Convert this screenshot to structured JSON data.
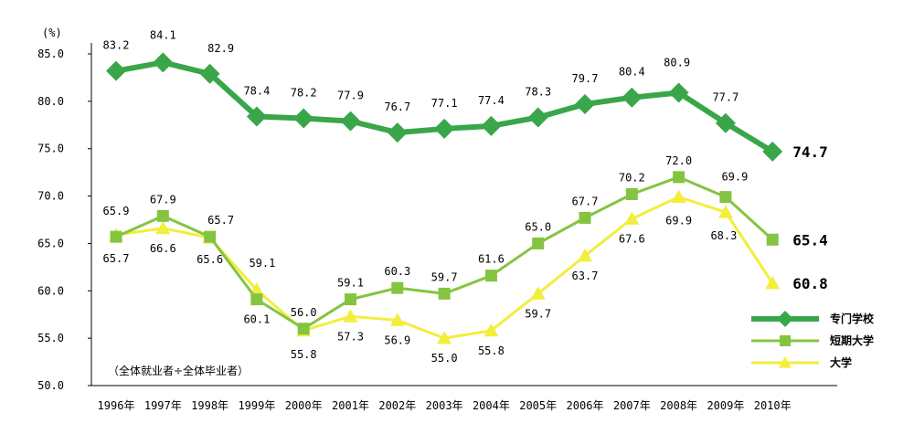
{
  "chart_data": {
    "type": "line",
    "unit_label": "(%)",
    "note": "（全体就业者÷全体毕业者）",
    "categories": [
      "1996年",
      "1997年",
      "1998年",
      "1999年",
      "2000年",
      "2001年",
      "2002年",
      "2003年",
      "2004年",
      "2005年",
      "2006年",
      "2007年",
      "2008年",
      "2009年",
      "2010年"
    ],
    "y_ticks": [
      "50.0",
      "55.0",
      "60.0",
      "65.0",
      "70.0",
      "75.0",
      "80.0",
      "85.0"
    ],
    "ylim": [
      50,
      85
    ],
    "grid": false,
    "legend_position": "bottom-right",
    "series": [
      {
        "name": "专门学校",
        "color": "#3aa64a",
        "marker": "diamond",
        "values": [
          83.2,
          84.1,
          82.9,
          78.4,
          78.2,
          77.9,
          76.7,
          77.1,
          77.4,
          78.3,
          79.7,
          80.4,
          80.9,
          77.7,
          74.7
        ],
        "labels": [
          "83.2",
          "84.1",
          "82.9",
          "78.4",
          "78.2",
          "77.9",
          "76.7",
          "77.1",
          "77.4",
          "78.3",
          "79.7",
          "80.4",
          "80.9",
          "77.7",
          "74.7"
        ]
      },
      {
        "name": "短期大学",
        "color": "#84c441",
        "marker": "square",
        "values": [
          65.7,
          67.9,
          65.7,
          59.1,
          56.0,
          59.1,
          60.3,
          59.7,
          61.6,
          65.0,
          67.7,
          70.2,
          72.0,
          69.9,
          65.4
        ],
        "labels": [
          "65.7",
          "67.9",
          "65.7",
          "59.1",
          "56.0",
          "59.1",
          "60.3",
          "59.7",
          "61.6",
          "65.0",
          "67.7",
          "70.2",
          "72.0",
          "69.9",
          "65.4"
        ]
      },
      {
        "name": "大学",
        "color": "#f2ee3c",
        "marker": "triangle",
        "values": [
          65.9,
          66.6,
          65.6,
          60.1,
          55.8,
          57.3,
          56.9,
          55.0,
          55.8,
          59.7,
          63.7,
          67.6,
          69.9,
          68.3,
          60.8
        ],
        "labels": [
          "65.9",
          "66.6",
          "65.6",
          "60.1",
          "55.8",
          "57.3",
          "56.9",
          "55.0",
          "55.8",
          "59.7",
          "63.7",
          "67.6",
          "69.9",
          "68.3",
          "60.8"
        ]
      }
    ]
  }
}
